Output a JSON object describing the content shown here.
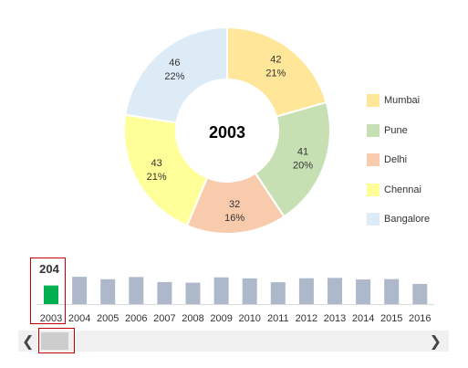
{
  "chart_data": [
    {
      "type": "pie",
      "title": "2003",
      "slices": [
        {
          "label": "Mumbai",
          "value": 42,
          "percent": "21%",
          "color": "#ffe699"
        },
        {
          "label": "Pune",
          "value": 41,
          "percent": "20%",
          "color": "#c6e0b4"
        },
        {
          "label": "Delhi",
          "value": 32,
          "percent": "16%",
          "color": "#f8cbad"
        },
        {
          "label": "Chennai",
          "value": 43,
          "percent": "21%",
          "color": "#ffff99"
        },
        {
          "label": "Bangalore",
          "value": 46,
          "percent": "22%",
          "color": "#ddebf7"
        }
      ],
      "legend": "right"
    },
    {
      "type": "bar",
      "categories": [
        "2003",
        "2004",
        "2005",
        "2006",
        "2007",
        "2008",
        "2009",
        "2010",
        "2011",
        "2012",
        "2013",
        "2014",
        "2015",
        "2016"
      ],
      "values": [
        204,
        245,
        223,
        243,
        198,
        192,
        240,
        231,
        196,
        232,
        235,
        221,
        224,
        181
      ],
      "highlight_index": 0,
      "highlight_label": "204",
      "colors": {
        "highlight": "#00b050",
        "bar": "#adb9ca",
        "frame": "#c00000"
      },
      "ylim": [
        0,
        300
      ]
    }
  ],
  "scrollbar": {
    "left_icon": "chevron-left-icon",
    "right_icon": "chevron-right-icon",
    "left_glyph": "❮",
    "right_glyph": "❯"
  }
}
